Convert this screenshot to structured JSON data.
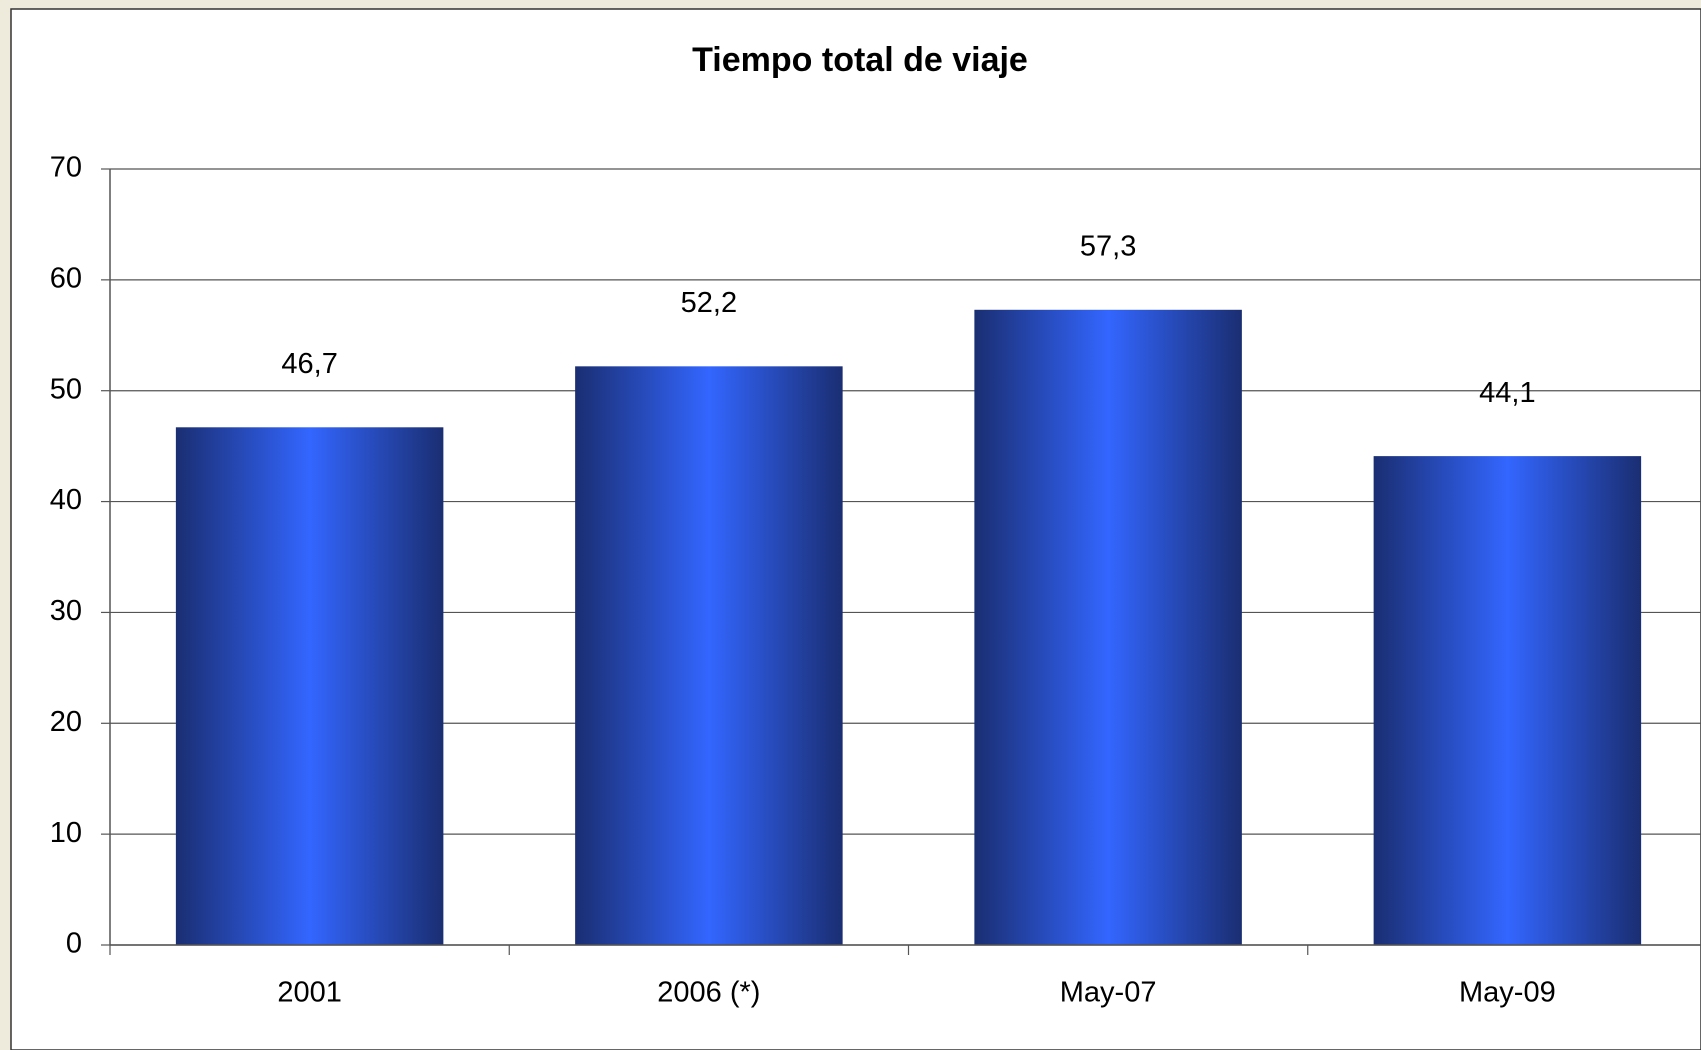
{
  "chart_data": {
    "type": "bar",
    "title": "Tiempo total de viaje",
    "categories": [
      "2001",
      "2006 (*)",
      "May-07",
      "May-09"
    ],
    "values": [
      46.7,
      52.2,
      57.3,
      44.1
    ],
    "value_labels": [
      "46,7",
      "52,2",
      "57,3",
      "44,1"
    ],
    "color": "#3366ff",
    "ylim": [
      0,
      70
    ],
    "yticks": [
      0,
      10,
      20,
      30,
      40,
      50,
      60,
      70
    ],
    "grid": true
  }
}
